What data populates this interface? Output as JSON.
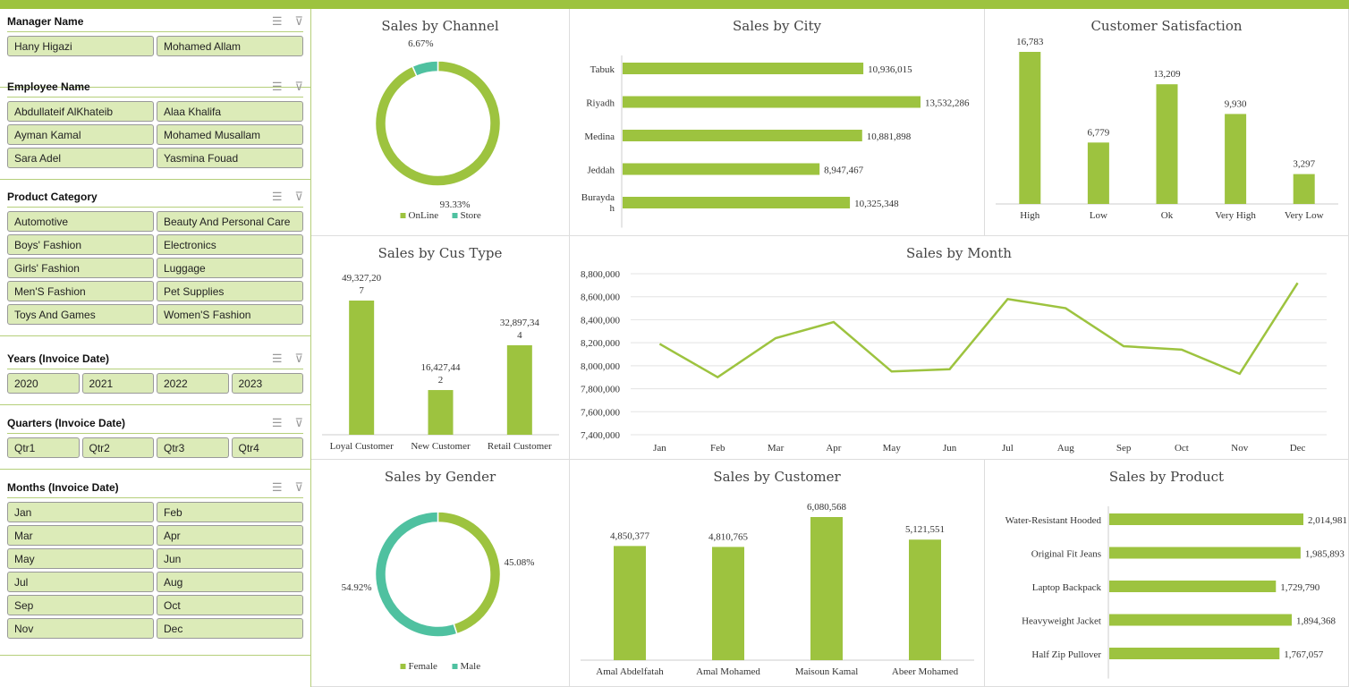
{
  "colors": {
    "accent": "#9dc33f",
    "teal": "#4fc1a0",
    "slicer_button": "#dcebb8"
  },
  "slicers": [
    {
      "title": "Manager Name",
      "cols": 2,
      "items": [
        "Hany Higazi",
        "Mohamed Allam"
      ]
    },
    {
      "title": "Employee Name",
      "cols": 2,
      "items": [
        "Abdullateif AlKhateib",
        "Alaa Khalifa",
        "Ayman Kamal",
        "Mohamed Musallam",
        "Sara Adel",
        "Yasmina Fouad"
      ]
    },
    {
      "title": "Product Category",
      "cols": 2,
      "items": [
        "Automotive",
        "Beauty And Personal Care",
        "Boys' Fashion",
        "Electronics",
        "Girls' Fashion",
        "Luggage",
        "Men'S Fashion",
        "Pet Supplies",
        "Toys And Games",
        "Women'S Fashion"
      ]
    },
    {
      "title": "Years (Invoice Date)",
      "cols": 4,
      "items": [
        "2020",
        "2021",
        "2022",
        "2023"
      ]
    },
    {
      "title": "Quarters (Invoice Date)",
      "cols": 4,
      "items": [
        "Qtr1",
        "Qtr2",
        "Qtr3",
        "Qtr4"
      ]
    },
    {
      "title": "Months (Invoice Date)",
      "cols": 2,
      "items": [
        "Jan",
        "Feb",
        "Mar",
        "Apr",
        "May",
        "Jun",
        "Jul",
        "Aug",
        "Sep",
        "Oct",
        "Nov",
        "Dec"
      ]
    }
  ],
  "slicer_icons": [
    "multi-select-icon",
    "clear-filter-icon"
  ],
  "chart_data": [
    {
      "id": "channel",
      "type": "pie",
      "donut": true,
      "title": "Sales by Channel",
      "categories": [
        "OnLine",
        "Store"
      ],
      "values": [
        93.33,
        6.67
      ],
      "labels": [
        "93.33%",
        "6.67%"
      ],
      "legend": "bottom"
    },
    {
      "id": "city",
      "type": "bar",
      "orientation": "horizontal",
      "title": "Sales by City",
      "categories": [
        "Tabuk",
        "Riyadh",
        "Medina",
        "Jeddah",
        "Buraydah"
      ],
      "category_labels": [
        "Tabuk",
        "Riyadh",
        "Medina",
        "Jeddah",
        "Burayda h"
      ],
      "values": [
        10936015,
        13532286,
        10881898,
        8947467,
        10325348
      ],
      "labels": [
        "10,936,015",
        "13,532,286",
        "10,881,898",
        "8,947,467",
        "10,325,348"
      ]
    },
    {
      "id": "satisfaction",
      "type": "bar",
      "title": "Customer Satisfaction",
      "categories": [
        "High",
        "Low",
        "Ok",
        "Very High",
        "Very Low"
      ],
      "values": [
        16783,
        6779,
        13209,
        9930,
        3297
      ],
      "labels": [
        "16,783",
        "6,779",
        "13,209",
        "9,930",
        "3,297"
      ]
    },
    {
      "id": "custype",
      "type": "bar",
      "title": "Sales by Cus Type",
      "categories": [
        "Loyal Customer",
        "New Customer",
        "Retail Customer"
      ],
      "values": [
        49327207,
        16427442,
        32897344
      ],
      "labels": [
        "49,327,20\n7",
        "16,427,44\n2",
        "32,897,34\n4"
      ]
    },
    {
      "id": "month",
      "type": "line",
      "title": "Sales by Month",
      "categories": [
        "Jan",
        "Feb",
        "Mar",
        "Apr",
        "May",
        "Jun",
        "Jul",
        "Aug",
        "Sep",
        "Oct",
        "Nov",
        "Dec"
      ],
      "values": [
        8190000,
        7900000,
        8240000,
        8380000,
        7950000,
        7970000,
        8580000,
        8500000,
        8170000,
        8140000,
        7930000,
        8720000
      ],
      "ylim": [
        7400000,
        8800000
      ],
      "yticks": [
        "7,400,000",
        "7,600,000",
        "7,800,000",
        "8,000,000",
        "8,200,000",
        "8,400,000",
        "8,600,000",
        "8,800,000"
      ],
      "grid": true
    },
    {
      "id": "gender",
      "type": "pie",
      "donut": true,
      "title": "Sales by Gender",
      "categories": [
        "Female",
        "Male"
      ],
      "values": [
        45.08,
        54.92
      ],
      "labels": [
        "45.08%",
        "54.92%"
      ],
      "legend": "bottom"
    },
    {
      "id": "customer",
      "type": "bar",
      "title": "Sales by Customer",
      "categories": [
        "Amal Abdelfatah",
        "Amal Mohamed",
        "Maisoun Kamal",
        "Abeer Mohamed"
      ],
      "values": [
        4850377,
        4810765,
        6080568,
        5121551
      ],
      "labels": [
        "4,850,377",
        "4,810,765",
        "6,080,568",
        "5,121,551"
      ]
    },
    {
      "id": "product",
      "type": "bar",
      "orientation": "horizontal",
      "title": "Sales by Product",
      "categories": [
        "Water-Resistant Hooded",
        "Original Fit Jeans",
        "Laptop Backpack",
        "Heavyweight Jacket",
        "Half Zip Pullover"
      ],
      "values": [
        2014981,
        1985893,
        1729790,
        1894368,
        1767057
      ],
      "labels": [
        "2,014,981",
        "1,985,893",
        "1,729,790",
        "1,894,368",
        "1,767,057"
      ]
    }
  ]
}
